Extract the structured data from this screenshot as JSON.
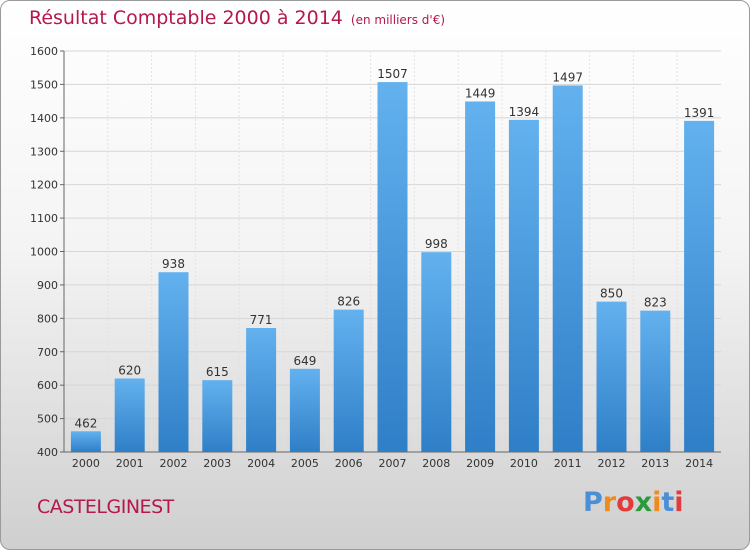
{
  "header": {
    "title": "Résultat Comptable 2000 à 2014",
    "subtitle": "(en milliers d'€)"
  },
  "footer": {
    "place": "CASTELGINEST",
    "logo_letters": [
      "P",
      "r",
      "o",
      "x",
      "i",
      "t",
      "i"
    ],
    "logo_colors": [
      "#4a8fd6",
      "#f08a1c",
      "#e23b3b",
      "#2a9a3a",
      "#f08a1c",
      "#4a8fd6",
      "#e23b3b"
    ]
  },
  "colors": {
    "bar_light": "#63b1ee",
    "bar_dark": "#2f7fc8",
    "title": "#b5174f"
  },
  "chart_data": {
    "type": "bar",
    "title": "Résultat Comptable 2000 à 2014",
    "subtitle": "(en milliers d'€)",
    "categories": [
      "2000",
      "2001",
      "2002",
      "2003",
      "2004",
      "2005",
      "2006",
      "2007",
      "2008",
      "2009",
      "2010",
      "2011",
      "2012",
      "2013",
      "2014"
    ],
    "values": [
      462,
      620,
      938,
      615,
      771,
      649,
      826,
      1507,
      998,
      1449,
      1394,
      1497,
      850,
      823,
      1391
    ],
    "ylim": [
      400,
      1600
    ],
    "yticks": [
      400,
      500,
      600,
      700,
      800,
      900,
      1000,
      1100,
      1200,
      1300,
      1400,
      1500,
      1600
    ],
    "grid": true
  }
}
